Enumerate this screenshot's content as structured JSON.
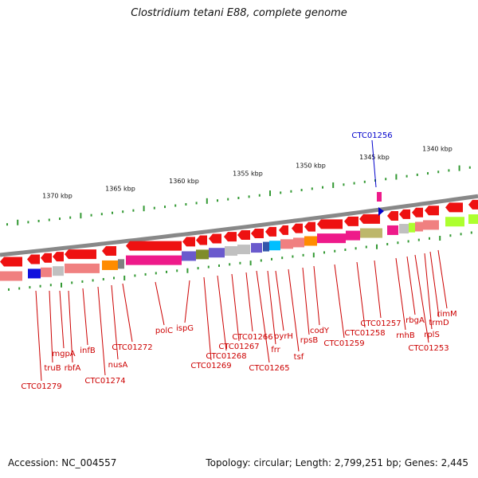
{
  "title": "Clostridium tetani E88, complete genome",
  "footer": {
    "accession": "Accession: NC_004557",
    "summary": "Topology: circular; Length: 2,799,251 bp; Genes: 2,445"
  },
  "colors": {
    "gene_default": "#ee1111",
    "highlight": "#0000cc",
    "label": "#cc0000",
    "tick": "#339933",
    "backbone": "#888888"
  },
  "scale_labels": [
    "1370 kbp",
    "1365 kbp",
    "1360 kbp",
    "1355 kbp",
    "1350 kbp",
    "1345 kbp",
    "1340 kbp"
  ],
  "highlighted_gene": "CTC01256",
  "gene_labels": [
    "CTC01279",
    "truB",
    "mgpA",
    "rbfA",
    "infB",
    "CTC01274",
    "nusA",
    "CTC01272",
    "polC",
    "ispG",
    "CTC01269",
    "CTC01268",
    "CTC01267",
    "CTC01266",
    "CTC01265",
    "frr",
    "pyrH",
    "tsf",
    "rpsB",
    "codY",
    "CTC01259",
    "CTC01258",
    "CTC01257",
    "rnhB",
    "rbgA",
    "CTC01253",
    "rplS",
    "trmD",
    "rimM"
  ]
}
